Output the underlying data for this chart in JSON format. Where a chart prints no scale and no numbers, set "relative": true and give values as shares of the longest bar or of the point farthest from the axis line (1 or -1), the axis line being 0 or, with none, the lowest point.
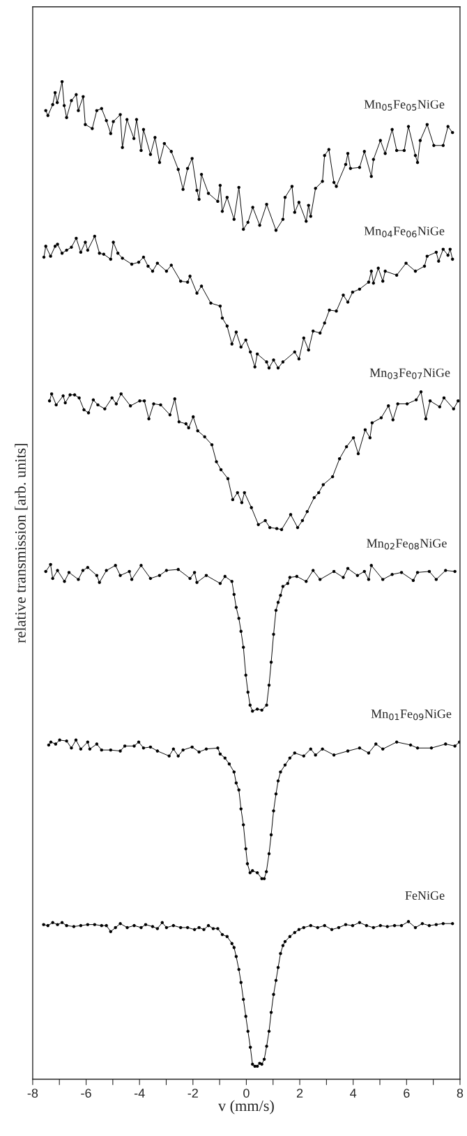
{
  "chart_data": {
    "type": "line",
    "relative": true,
    "xlabel": "v (mm/s)",
    "ylabel": "relative transmission [arb. units]",
    "marker": "circle",
    "line_style": "solid",
    "grid": false,
    "legend": false,
    "xlim": [
      -8,
      8
    ],
    "xticks": [
      -8,
      {
        "value": -7,
        "label": null
      },
      -6,
      {
        "value": -5,
        "label": null
      },
      -4,
      {
        "value": -3,
        "label": null
      },
      -2,
      {
        "value": -1,
        "label": null
      },
      0,
      {
        "value": 1,
        "label": null
      },
      2,
      {
        "value": 3,
        "label": null
      },
      4,
      {
        "value": 5,
        "label": null
      },
      6,
      {
        "value": 7,
        "label": null
      },
      8
    ],
    "series": [
      {
        "name": "Mn$_{05}$Fe$_{05}$NiGe",
        "color": "#000000",
        "x": [
          -7.51,
          -7.43,
          -7.25,
          -7.16,
          -7.08,
          -6.9,
          -6.82,
          -6.73,
          -6.55,
          -6.37,
          -6.29,
          -6.11,
          -6.03,
          -5.77,
          -5.6,
          -5.42,
          -5.24,
          -5.08,
          -4.98,
          -4.72,
          -4.64,
          -4.47,
          -4.21,
          -4.11,
          -3.94,
          -3.85,
          -3.59,
          -3.42,
          -3.25,
          -3.07,
          -2.81,
          -2.55,
          -2.37,
          -2.2,
          -2.03,
          -1.85,
          -1.77,
          -1.68,
          -1.42,
          -1.07,
          -0.98,
          -0.9,
          -0.72,
          -0.46,
          -0.28,
          -0.11,
          0.06,
          0.24,
          0.5,
          0.76,
          1.11,
          1.37,
          1.45,
          1.71,
          1.81,
          1.97,
          2.24,
          2.33,
          2.41,
          2.59,
          2.85,
          2.93,
          3.09,
          3.28,
          3.37,
          3.72,
          3.8,
          3.9,
          4.24,
          4.42,
          4.68,
          4.76,
          5.02,
          5.2,
          5.46,
          5.63,
          5.91,
          6.07,
          6.33,
          6.41,
          6.51,
          6.77,
          7.02,
          7.37,
          7.55,
          7.72
        ],
        "values": [
          0.971,
          0.966,
          0.977,
          0.989,
          0.979,
          1.0,
          0.976,
          0.964,
          0.981,
          0.987,
          0.971,
          0.985,
          0.957,
          0.953,
          0.971,
          0.973,
          0.961,
          0.948,
          0.96,
          0.967,
          0.934,
          0.962,
          0.943,
          0.962,
          0.931,
          0.952,
          0.927,
          0.944,
          0.919,
          0.938,
          0.93,
          0.912,
          0.892,
          0.913,
          0.923,
          0.891,
          0.882,
          0.907,
          0.888,
          0.88,
          0.896,
          0.87,
          0.884,
          0.862,
          0.894,
          0.852,
          0.859,
          0.874,
          0.856,
          0.877,
          0.851,
          0.862,
          0.884,
          0.895,
          0.869,
          0.879,
          0.86,
          0.876,
          0.865,
          0.893,
          0.9,
          0.926,
          0.932,
          0.899,
          0.895,
          0.917,
          0.928,
          0.913,
          0.914,
          0.93,
          0.905,
          0.922,
          0.941,
          0.928,
          0.952,
          0.931,
          0.931,
          0.955,
          0.926,
          0.919,
          0.941,
          0.957,
          0.936,
          0.936,
          0.955,
          0.949
        ]
      },
      {
        "name": "Mn$_{04}$Fe$_{06}$NiGe",
        "color": "#000000",
        "x": [
          -7.58,
          -7.51,
          -7.33,
          -7.16,
          -7.07,
          -6.9,
          -6.73,
          -6.55,
          -6.37,
          -6.2,
          -6.03,
          -5.94,
          -5.68,
          -5.5,
          -5.34,
          -5.08,
          -4.98,
          -4.81,
          -4.64,
          -4.29,
          -4.03,
          -3.85,
          -3.68,
          -3.51,
          -3.33,
          -2.99,
          -2.81,
          -2.46,
          -2.2,
          -2.11,
          -1.85,
          -1.68,
          -1.33,
          -0.98,
          -0.9,
          -0.72,
          -0.54,
          -0.38,
          -0.2,
          -0.02,
          0.15,
          0.32,
          0.41,
          0.76,
          0.85,
          1.02,
          1.19,
          1.37,
          1.81,
          1.97,
          2.15,
          2.33,
          2.5,
          2.76,
          2.93,
          3.11,
          3.37,
          3.63,
          3.8,
          3.98,
          4.24,
          4.58,
          4.68,
          4.76,
          4.94,
          5.11,
          5.2,
          5.63,
          5.98,
          6.33,
          6.67,
          6.77,
          7.11,
          7.2,
          7.37,
          7.55,
          7.63,
          7.72
        ],
        "values": [
          0.824,
          0.835,
          0.825,
          0.835,
          0.837,
          0.828,
          0.831,
          0.834,
          0.843,
          0.829,
          0.839,
          0.831,
          0.845,
          0.828,
          0.827,
          0.822,
          0.839,
          0.828,
          0.823,
          0.817,
          0.819,
          0.824,
          0.815,
          0.81,
          0.818,
          0.81,
          0.816,
          0.8,
          0.799,
          0.805,
          0.788,
          0.795,
          0.778,
          0.775,
          0.763,
          0.755,
          0.737,
          0.749,
          0.734,
          0.741,
          0.729,
          0.714,
          0.727,
          0.719,
          0.713,
          0.721,
          0.713,
          0.719,
          0.729,
          0.722,
          0.743,
          0.731,
          0.75,
          0.748,
          0.758,
          0.771,
          0.77,
          0.786,
          0.779,
          0.789,
          0.792,
          0.799,
          0.81,
          0.798,
          0.813,
          0.8,
          0.81,
          0.806,
          0.818,
          0.81,
          0.815,
          0.825,
          0.829,
          0.82,
          0.832,
          0.826,
          0.832,
          0.822
        ]
      },
      {
        "name": "Mn$_{03}$Fe$_{07}$NiGe",
        "color": "#000000",
        "x": [
          -7.37,
          -7.29,
          -7.12,
          -6.86,
          -6.78,
          -6.6,
          -6.43,
          -6.26,
          -6.08,
          -5.91,
          -5.73,
          -5.56,
          -5.3,
          -5.03,
          -4.87,
          -4.69,
          -4.34,
          -3.99,
          -3.82,
          -3.65,
          -3.47,
          -3.21,
          -2.86,
          -2.68,
          -2.52,
          -2.26,
          -2.16,
          -1.99,
          -1.82,
          -1.56,
          -1.29,
          -1.12,
          -0.95,
          -0.69,
          -0.51,
          -0.33,
          -0.17,
          -0.07,
          0.19,
          0.45,
          0.71,
          0.88,
          1.14,
          1.32,
          1.66,
          1.92,
          2.1,
          2.28,
          2.54,
          2.71,
          2.88,
          3.23,
          3.49,
          3.75,
          4.01,
          4.19,
          4.45,
          4.63,
          4.71,
          5.05,
          5.32,
          5.49,
          5.67,
          6.02,
          6.36,
          6.54,
          6.72,
          6.88,
          7.24,
          7.4,
          7.76,
          7.93
        ],
        "values": [
          0.68,
          0.687,
          0.676,
          0.685,
          0.678,
          0.686,
          0.686,
          0.683,
          0.671,
          0.668,
          0.681,
          0.676,
          0.672,
          0.683,
          0.677,
          0.687,
          0.675,
          0.68,
          0.68,
          0.662,
          0.677,
          0.676,
          0.666,
          0.682,
          0.659,
          0.657,
          0.653,
          0.664,
          0.65,
          0.644,
          0.636,
          0.619,
          0.611,
          0.602,
          0.581,
          0.588,
          0.578,
          0.588,
          0.573,
          0.556,
          0.56,
          0.553,
          0.552,
          0.551,
          0.566,
          0.553,
          0.56,
          0.569,
          0.583,
          0.588,
          0.596,
          0.604,
          0.622,
          0.634,
          0.643,
          0.627,
          0.651,
          0.643,
          0.658,
          0.663,
          0.675,
          0.661,
          0.677,
          0.677,
          0.681,
          0.689,
          0.662,
          0.68,
          0.674,
          0.683,
          0.672,
          0.68
        ]
      },
      {
        "name": "Mn$_{02}$Fe$_{08}$NiGe",
        "color": "#000000",
        "x": [
          -7.51,
          -7.33,
          -7.25,
          -7.07,
          -6.81,
          -6.64,
          -6.29,
          -6.12,
          -5.94,
          -5.6,
          -5.5,
          -5.24,
          -4.9,
          -4.72,
          -4.38,
          -4.29,
          -3.94,
          -3.59,
          -3.25,
          -2.99,
          -2.55,
          -2.11,
          -1.94,
          -1.85,
          -1.5,
          -0.98,
          -0.8,
          -0.54,
          -0.46,
          -0.38,
          -0.28,
          -0.2,
          -0.11,
          -0.02,
          0.06,
          0.14,
          0.23,
          0.41,
          0.58,
          0.76,
          0.85,
          0.93,
          1.02,
          1.11,
          1.19,
          1.28,
          1.37,
          1.55,
          1.63,
          1.89,
          2.24,
          2.5,
          2.76,
          3.28,
          3.63,
          3.8,
          4.16,
          4.42,
          4.58,
          4.68,
          5.11,
          5.46,
          5.81,
          6.25,
          6.41,
          6.85,
          7.11,
          7.46,
          7.81
        ],
        "values": [
          0.509,
          0.516,
          0.502,
          0.51,
          0.499,
          0.508,
          0.501,
          0.51,
          0.513,
          0.505,
          0.498,
          0.51,
          0.515,
          0.505,
          0.509,
          0.501,
          0.515,
          0.502,
          0.505,
          0.51,
          0.511,
          0.502,
          0.508,
          0.498,
          0.505,
          0.497,
          0.504,
          0.499,
          0.486,
          0.473,
          0.462,
          0.449,
          0.433,
          0.405,
          0.388,
          0.375,
          0.369,
          0.371,
          0.37,
          0.375,
          0.395,
          0.418,
          0.446,
          0.47,
          0.478,
          0.485,
          0.494,
          0.497,
          0.503,
          0.504,
          0.499,
          0.51,
          0.501,
          0.509,
          0.503,
          0.512,
          0.505,
          0.509,
          0.501,
          0.515,
          0.501,
          0.506,
          0.508,
          0.5,
          0.508,
          0.509,
          0.501,
          0.51,
          0.509
        ]
      },
      {
        "name": "Mn$_{01}$Fe$_{09}$NiGe",
        "color": "#000000",
        "x": [
          -7.4,
          -7.32,
          -7.14,
          -6.99,
          -6.73,
          -6.55,
          -6.38,
          -6.2,
          -5.94,
          -5.86,
          -5.6,
          -5.42,
          -5.08,
          -4.72,
          -4.55,
          -4.2,
          -4.03,
          -3.85,
          -3.59,
          -3.33,
          -2.89,
          -2.73,
          -2.55,
          -2.37,
          -2.03,
          -1.77,
          -1.5,
          -1.07,
          -0.98,
          -0.8,
          -0.64,
          -0.46,
          -0.38,
          -0.28,
          -0.2,
          -0.11,
          -0.02,
          0.04,
          0.14,
          0.23,
          0.41,
          0.58,
          0.67,
          0.75,
          0.85,
          0.93,
          1.02,
          1.11,
          1.19,
          1.28,
          1.45,
          1.63,
          1.81,
          2.15,
          2.41,
          2.59,
          2.85,
          3.28,
          3.8,
          4.24,
          4.58,
          4.85,
          5.11,
          5.63,
          6.15,
          6.41,
          6.93,
          7.46,
          7.81,
          7.98
        ],
        "values": [
          0.335,
          0.338,
          0.336,
          0.34,
          0.339,
          0.332,
          0.34,
          0.331,
          0.338,
          0.331,
          0.336,
          0.33,
          0.33,
          0.329,
          0.334,
          0.334,
          0.338,
          0.332,
          0.333,
          0.329,
          0.324,
          0.331,
          0.324,
          0.33,
          0.333,
          0.328,
          0.331,
          0.332,
          0.326,
          0.322,
          0.316,
          0.308,
          0.297,
          0.29,
          0.271,
          0.255,
          0.231,
          0.216,
          0.207,
          0.209,
          0.207,
          0.201,
          0.201,
          0.208,
          0.226,
          0.245,
          0.269,
          0.286,
          0.299,
          0.308,
          0.315,
          0.322,
          0.327,
          0.324,
          0.331,
          0.325,
          0.331,
          0.325,
          0.329,
          0.332,
          0.327,
          0.336,
          0.331,
          0.338,
          0.335,
          0.332,
          0.332,
          0.336,
          0.334,
          0.338
        ]
      },
      {
        "name": "FeNiGe",
        "color": "#000000",
        "x": [
          -7.59,
          -7.43,
          -7.25,
          -7.07,
          -6.9,
          -6.73,
          -6.46,
          -6.2,
          -5.94,
          -5.68,
          -5.42,
          -5.24,
          -5.08,
          -4.9,
          -4.72,
          -4.46,
          -4.2,
          -3.94,
          -3.77,
          -3.51,
          -3.33,
          -3.15,
          -2.99,
          -2.73,
          -2.46,
          -2.2,
          -1.94,
          -1.77,
          -1.59,
          -1.42,
          -1.24,
          -1.07,
          -0.9,
          -0.72,
          -0.54,
          -0.46,
          -0.38,
          -0.28,
          -0.2,
          -0.11,
          -0.02,
          0.06,
          0.15,
          0.23,
          0.32,
          0.41,
          0.5,
          0.58,
          0.67,
          0.76,
          0.85,
          0.93,
          1.02,
          1.11,
          1.19,
          1.28,
          1.37,
          1.45,
          1.63,
          1.81,
          1.97,
          2.15,
          2.41,
          2.67,
          2.93,
          3.2,
          3.46,
          3.72,
          3.98,
          4.24,
          4.5,
          4.76,
          5.02,
          5.28,
          5.55,
          5.81,
          6.07,
          6.33,
          6.59,
          6.85,
          7.11,
          7.37,
          7.72
        ],
        "values": [
          0.155,
          0.154,
          0.157,
          0.155,
          0.157,
          0.154,
          0.153,
          0.154,
          0.155,
          0.155,
          0.154,
          0.154,
          0.148,
          0.152,
          0.156,
          0.152,
          0.154,
          0.152,
          0.155,
          0.153,
          0.151,
          0.157,
          0.152,
          0.154,
          0.152,
          0.152,
          0.15,
          0.152,
          0.15,
          0.154,
          0.151,
          0.151,
          0.145,
          0.143,
          0.136,
          0.132,
          0.123,
          0.11,
          0.097,
          0.08,
          0.063,
          0.048,
          0.032,
          0.015,
          0.013,
          0.013,
          0.016,
          0.015,
          0.02,
          0.033,
          0.048,
          0.067,
          0.085,
          0.099,
          0.112,
          0.126,
          0.134,
          0.138,
          0.143,
          0.147,
          0.15,
          0.152,
          0.154,
          0.152,
          0.154,
          0.15,
          0.152,
          0.155,
          0.154,
          0.157,
          0.154,
          0.152,
          0.154,
          0.153,
          0.154,
          0.154,
          0.158,
          0.152,
          0.156,
          0.154,
          0.155,
          0.156,
          0.156
        ]
      }
    ]
  }
}
